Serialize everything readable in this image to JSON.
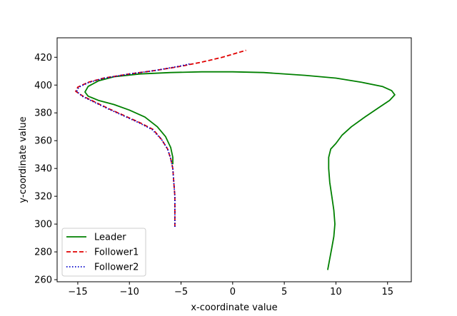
{
  "chart_data": {
    "type": "line",
    "xlabel": "x-coordinate value",
    "ylabel": "y-coordinate value",
    "xlim": [
      -17,
      17.3
    ],
    "ylim": [
      258.5,
      434
    ],
    "xticks": [
      -15,
      -10,
      -5,
      0,
      5,
      10,
      15
    ],
    "yticks": [
      260,
      280,
      300,
      320,
      340,
      360,
      380,
      400,
      420
    ],
    "grid": false,
    "legend_position": "lower-left",
    "series": [
      {
        "name": "Leader",
        "color": "#008000",
        "style": "solid",
        "points": [
          [
            9.2,
            267
          ],
          [
            9.4,
            275
          ],
          [
            9.6,
            283
          ],
          [
            9.8,
            291
          ],
          [
            9.9,
            300
          ],
          [
            9.8,
            310
          ],
          [
            9.6,
            320
          ],
          [
            9.4,
            330
          ],
          [
            9.3,
            340
          ],
          [
            9.3,
            348
          ],
          [
            9.5,
            354
          ],
          [
            10.0,
            358
          ],
          [
            10.6,
            364
          ],
          [
            11.5,
            370
          ],
          [
            12.8,
            377
          ],
          [
            14.2,
            384
          ],
          [
            15.2,
            389
          ],
          [
            15.7,
            393
          ],
          [
            15.4,
            396
          ],
          [
            14.5,
            399
          ],
          [
            12.5,
            402
          ],
          [
            10.0,
            405
          ],
          [
            7.0,
            407
          ],
          [
            3.0,
            409
          ],
          [
            0.0,
            409.5
          ],
          [
            -3.0,
            409.5
          ],
          [
            -6.0,
            409
          ],
          [
            -9.0,
            408
          ],
          [
            -11.5,
            406
          ],
          [
            -13.0,
            403
          ],
          [
            -14.0,
            399
          ],
          [
            -14.3,
            395
          ],
          [
            -14.0,
            392
          ],
          [
            -13.0,
            389
          ],
          [
            -11.5,
            386
          ],
          [
            -10.0,
            382
          ],
          [
            -8.5,
            377
          ],
          [
            -7.3,
            370
          ],
          [
            -6.5,
            363
          ],
          [
            -6.0,
            355
          ],
          [
            -5.8,
            348
          ],
          [
            -5.8,
            343
          ]
        ]
      },
      {
        "name": "Follower1",
        "color": "#e00000",
        "style": "dashed",
        "points": [
          [
            -5.6,
            298
          ],
          [
            -5.6,
            305
          ],
          [
            -5.6,
            312
          ],
          [
            -5.6,
            320
          ],
          [
            -5.7,
            330
          ],
          [
            -5.8,
            340
          ],
          [
            -6.0,
            347
          ],
          [
            -6.3,
            354
          ],
          [
            -6.9,
            361
          ],
          [
            -7.7,
            368
          ],
          [
            -9.0,
            373
          ],
          [
            -10.5,
            378
          ],
          [
            -12.0,
            383
          ],
          [
            -13.4,
            388
          ],
          [
            -14.5,
            392
          ],
          [
            -15.2,
            395.5
          ],
          [
            -15.0,
            398.5
          ],
          [
            -14.0,
            402
          ],
          [
            -12.5,
            405
          ],
          [
            -10.0,
            408
          ],
          [
            -7.5,
            410.5
          ],
          [
            -5.0,
            413.5
          ],
          [
            -3.0,
            416.5
          ],
          [
            -1.0,
            420
          ],
          [
            1.3,
            425
          ]
        ]
      },
      {
        "name": "Follower2",
        "color": "#0000cc",
        "style": "dotted",
        "points": [
          [
            -5.6,
            298
          ],
          [
            -5.6,
            305
          ],
          [
            -5.6,
            312
          ],
          [
            -5.6,
            320
          ],
          [
            -5.7,
            330
          ],
          [
            -5.8,
            340
          ],
          [
            -6.0,
            347
          ],
          [
            -6.3,
            354
          ],
          [
            -6.9,
            361
          ],
          [
            -7.8,
            368
          ],
          [
            -9.1,
            373
          ],
          [
            -10.6,
            378
          ],
          [
            -12.1,
            383
          ],
          [
            -13.5,
            388
          ],
          [
            -14.6,
            392
          ],
          [
            -15.1,
            395.5
          ],
          [
            -14.9,
            398.5
          ],
          [
            -13.9,
            402
          ],
          [
            -12.4,
            405
          ],
          [
            -10.0,
            408
          ],
          [
            -7.5,
            410.5
          ],
          [
            -5.2,
            413.5
          ],
          [
            -4.0,
            415.5
          ]
        ]
      }
    ]
  }
}
